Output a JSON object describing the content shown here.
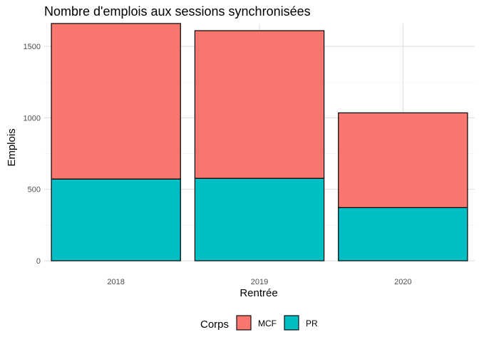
{
  "chart_data": {
    "type": "bar",
    "stacked": true,
    "title": "Nombre d'emplois aux sessions synchronisées",
    "xlabel": "Rentrée",
    "ylabel": "Emplois",
    "categories": [
      "2018",
      "2019",
      "2020"
    ],
    "series": [
      {
        "name": "PR",
        "values": [
          572,
          577,
          372
        ],
        "color": "#00BFC4"
      },
      {
        "name": "MCF",
        "values": [
          1088,
          1033,
          663
        ],
        "color": "#F8766D"
      }
    ],
    "ylim": [
      0,
      1660
    ],
    "yticks": [
      0,
      500,
      1000,
      1500
    ],
    "grid": true,
    "legend": {
      "title": "Corps",
      "position": "bottom",
      "entries": [
        {
          "label": "MCF",
          "color": "#F8766D"
        },
        {
          "label": "PR",
          "color": "#00BFC4"
        }
      ]
    }
  }
}
